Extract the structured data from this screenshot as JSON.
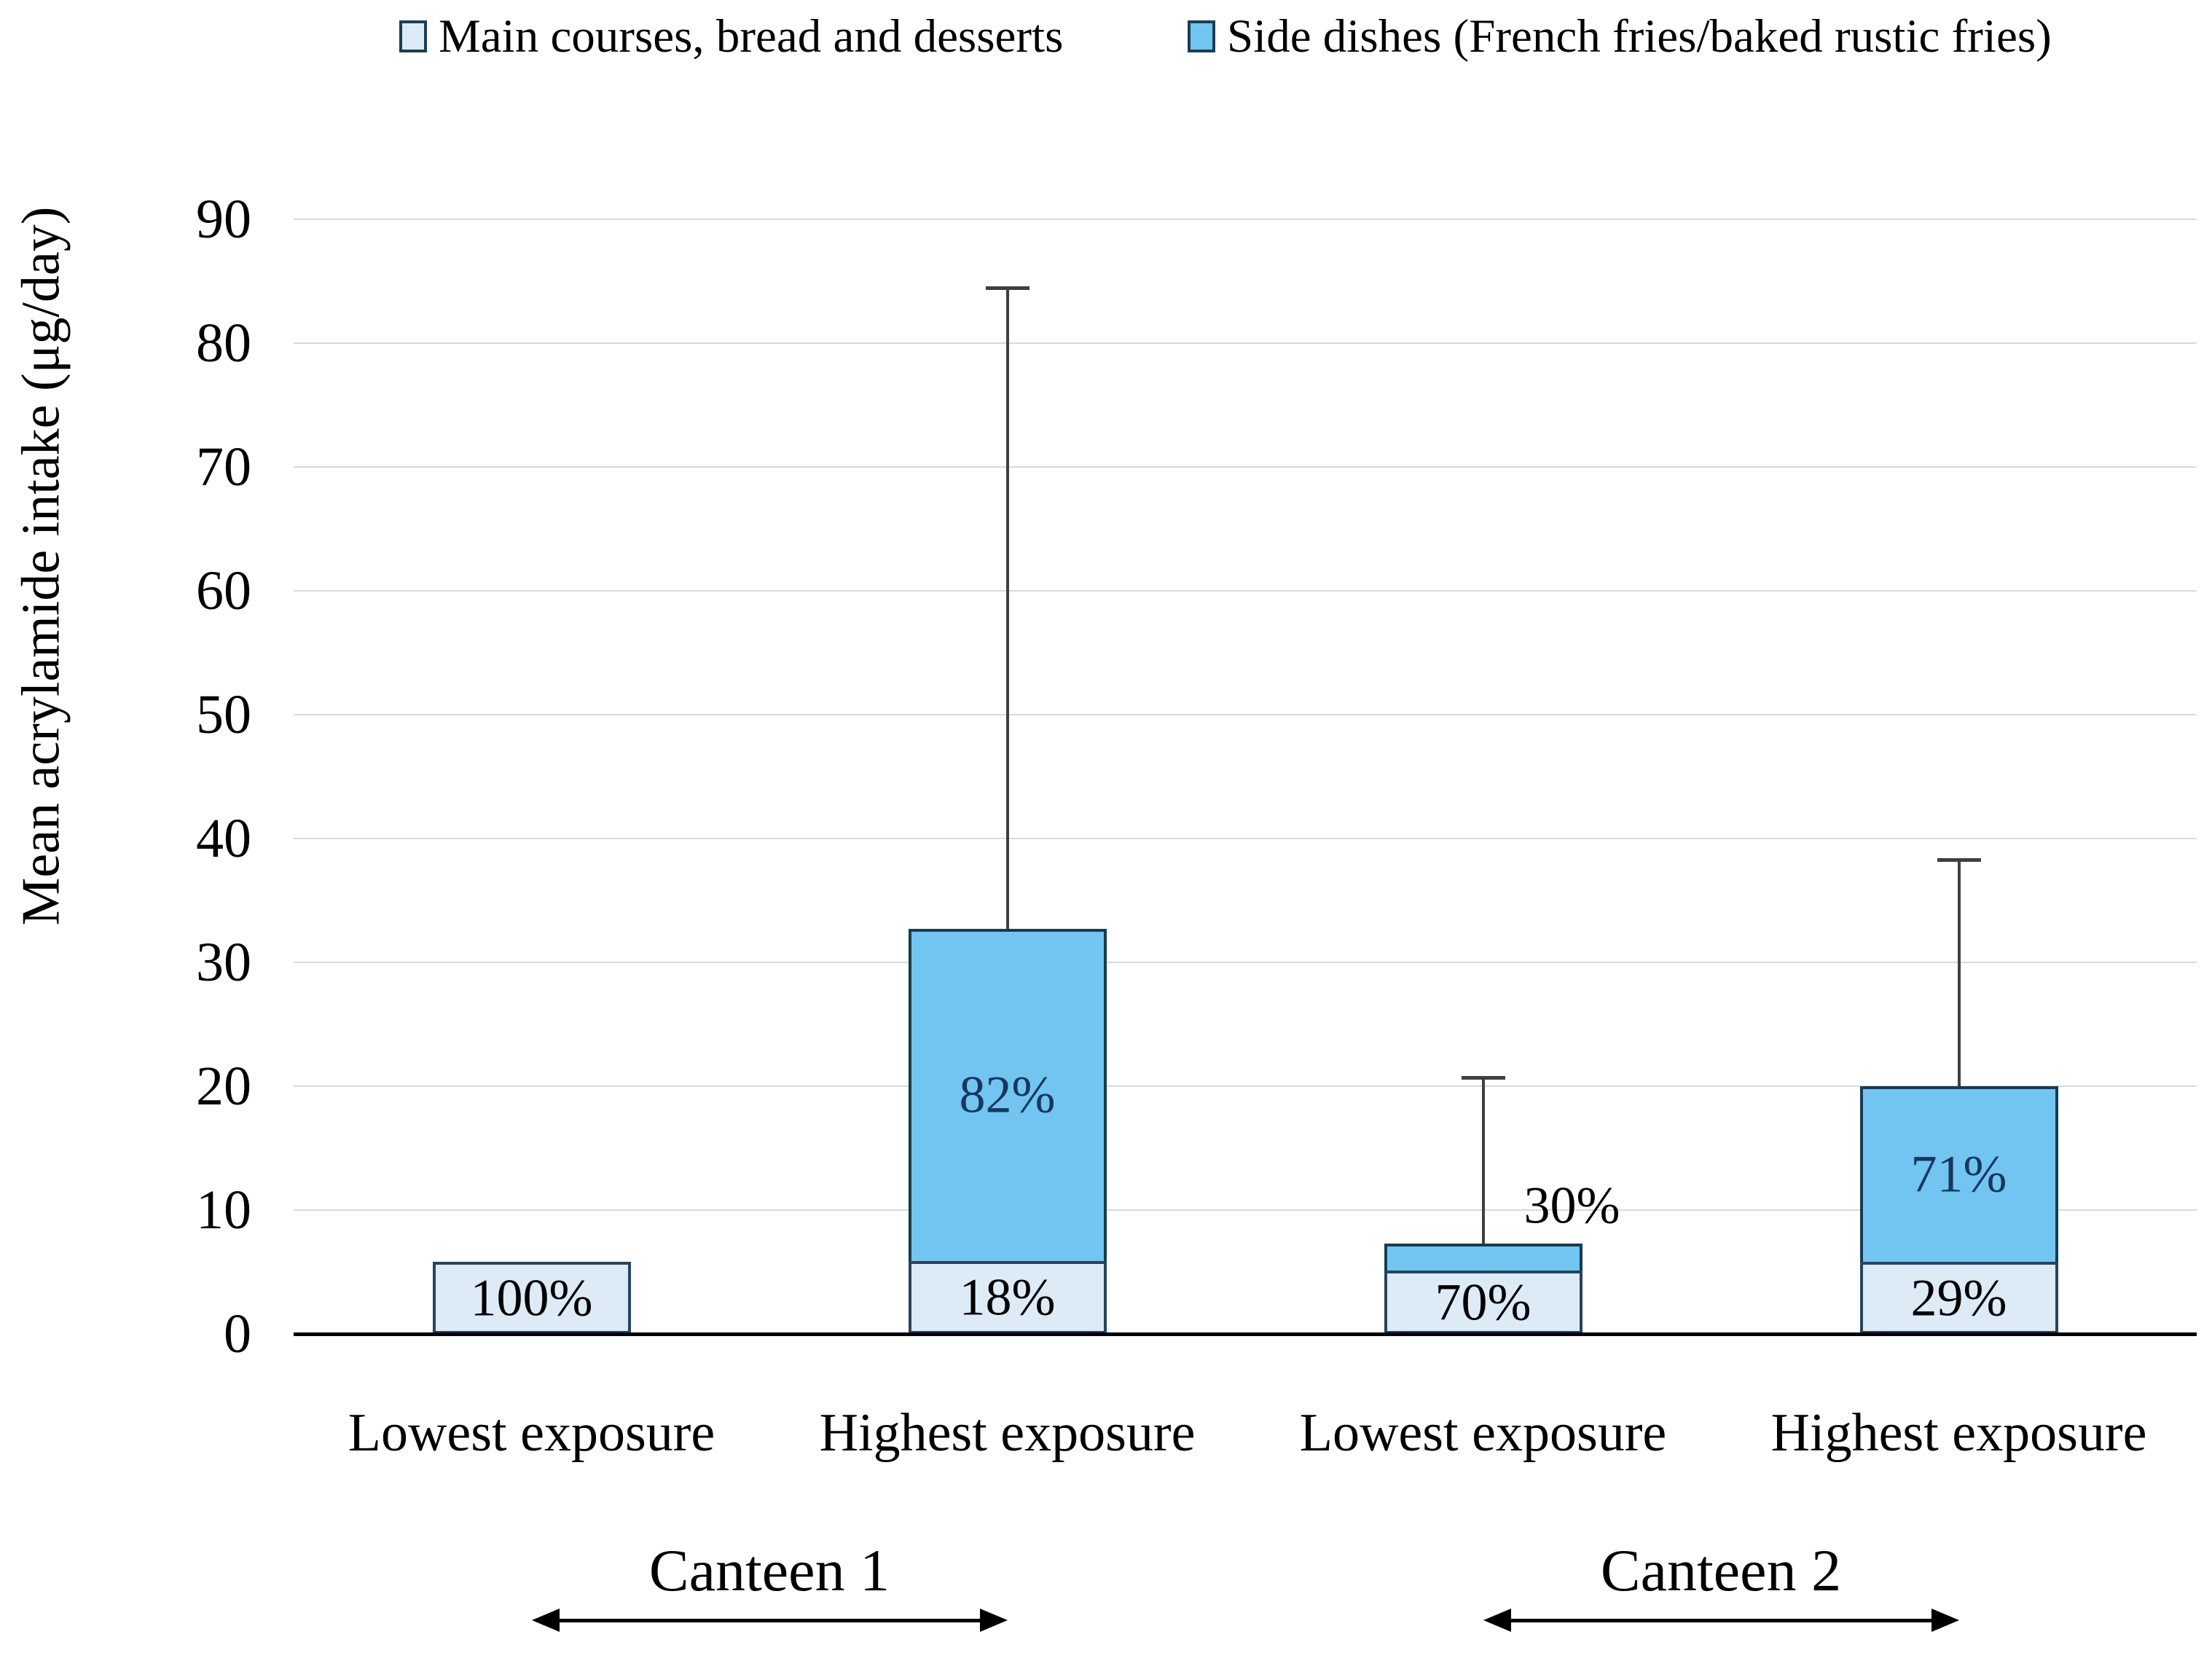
{
  "chart_data": {
    "type": "bar",
    "stacked": true,
    "ylabel": "Mean acrylamide intake (μg/day)",
    "ylim": [
      0,
      90
    ],
    "yticks": [
      0,
      10,
      20,
      30,
      40,
      50,
      60,
      70,
      80,
      90
    ],
    "grid": "horizontal",
    "legend_position": "top",
    "categories": [
      "Lowest exposure",
      "Highest exposure",
      "Lowest exposure",
      "Highest exposure"
    ],
    "group_labels": [
      "Canteen 1",
      "Canteen 2"
    ],
    "groups": [
      {
        "label": "Canteen 1",
        "category_indexes": [
          0,
          1
        ]
      },
      {
        "label": "Canteen 2",
        "category_indexes": [
          2,
          3
        ]
      }
    ],
    "series": [
      {
        "name": "Main courses, bread and desserts",
        "color": "#DDEBF7",
        "border_color": "#27445f",
        "values": [
          5.8,
          5.9,
          5.1,
          5.8
        ],
        "pct_labels": [
          "100%",
          "18%",
          "70%",
          "29%"
        ],
        "pct_label_color": "#000000"
      },
      {
        "name": "Side dishes (French fries/baked rustic fries)",
        "color": "#73C5F1",
        "border_color": "#173b52",
        "values": [
          0,
          26.8,
          2.2,
          14.2
        ],
        "pct_labels": [
          "",
          "82%",
          "30%",
          "71%"
        ],
        "pct_label_placement": [
          "inside",
          "inside",
          "outside",
          "inside"
        ],
        "pct_label_color_inside": "#17375e",
        "pct_label_color_outside": "#000000"
      }
    ],
    "totals": [
      5.8,
      32.7,
      7.3,
      20.0
    ],
    "error_bar_tops": [
      null,
      84.5,
      20.7,
      38.3
    ],
    "error_bar_color": "#404040",
    "gridline_color": "#d9d9d9",
    "axis_color": "#000000"
  }
}
